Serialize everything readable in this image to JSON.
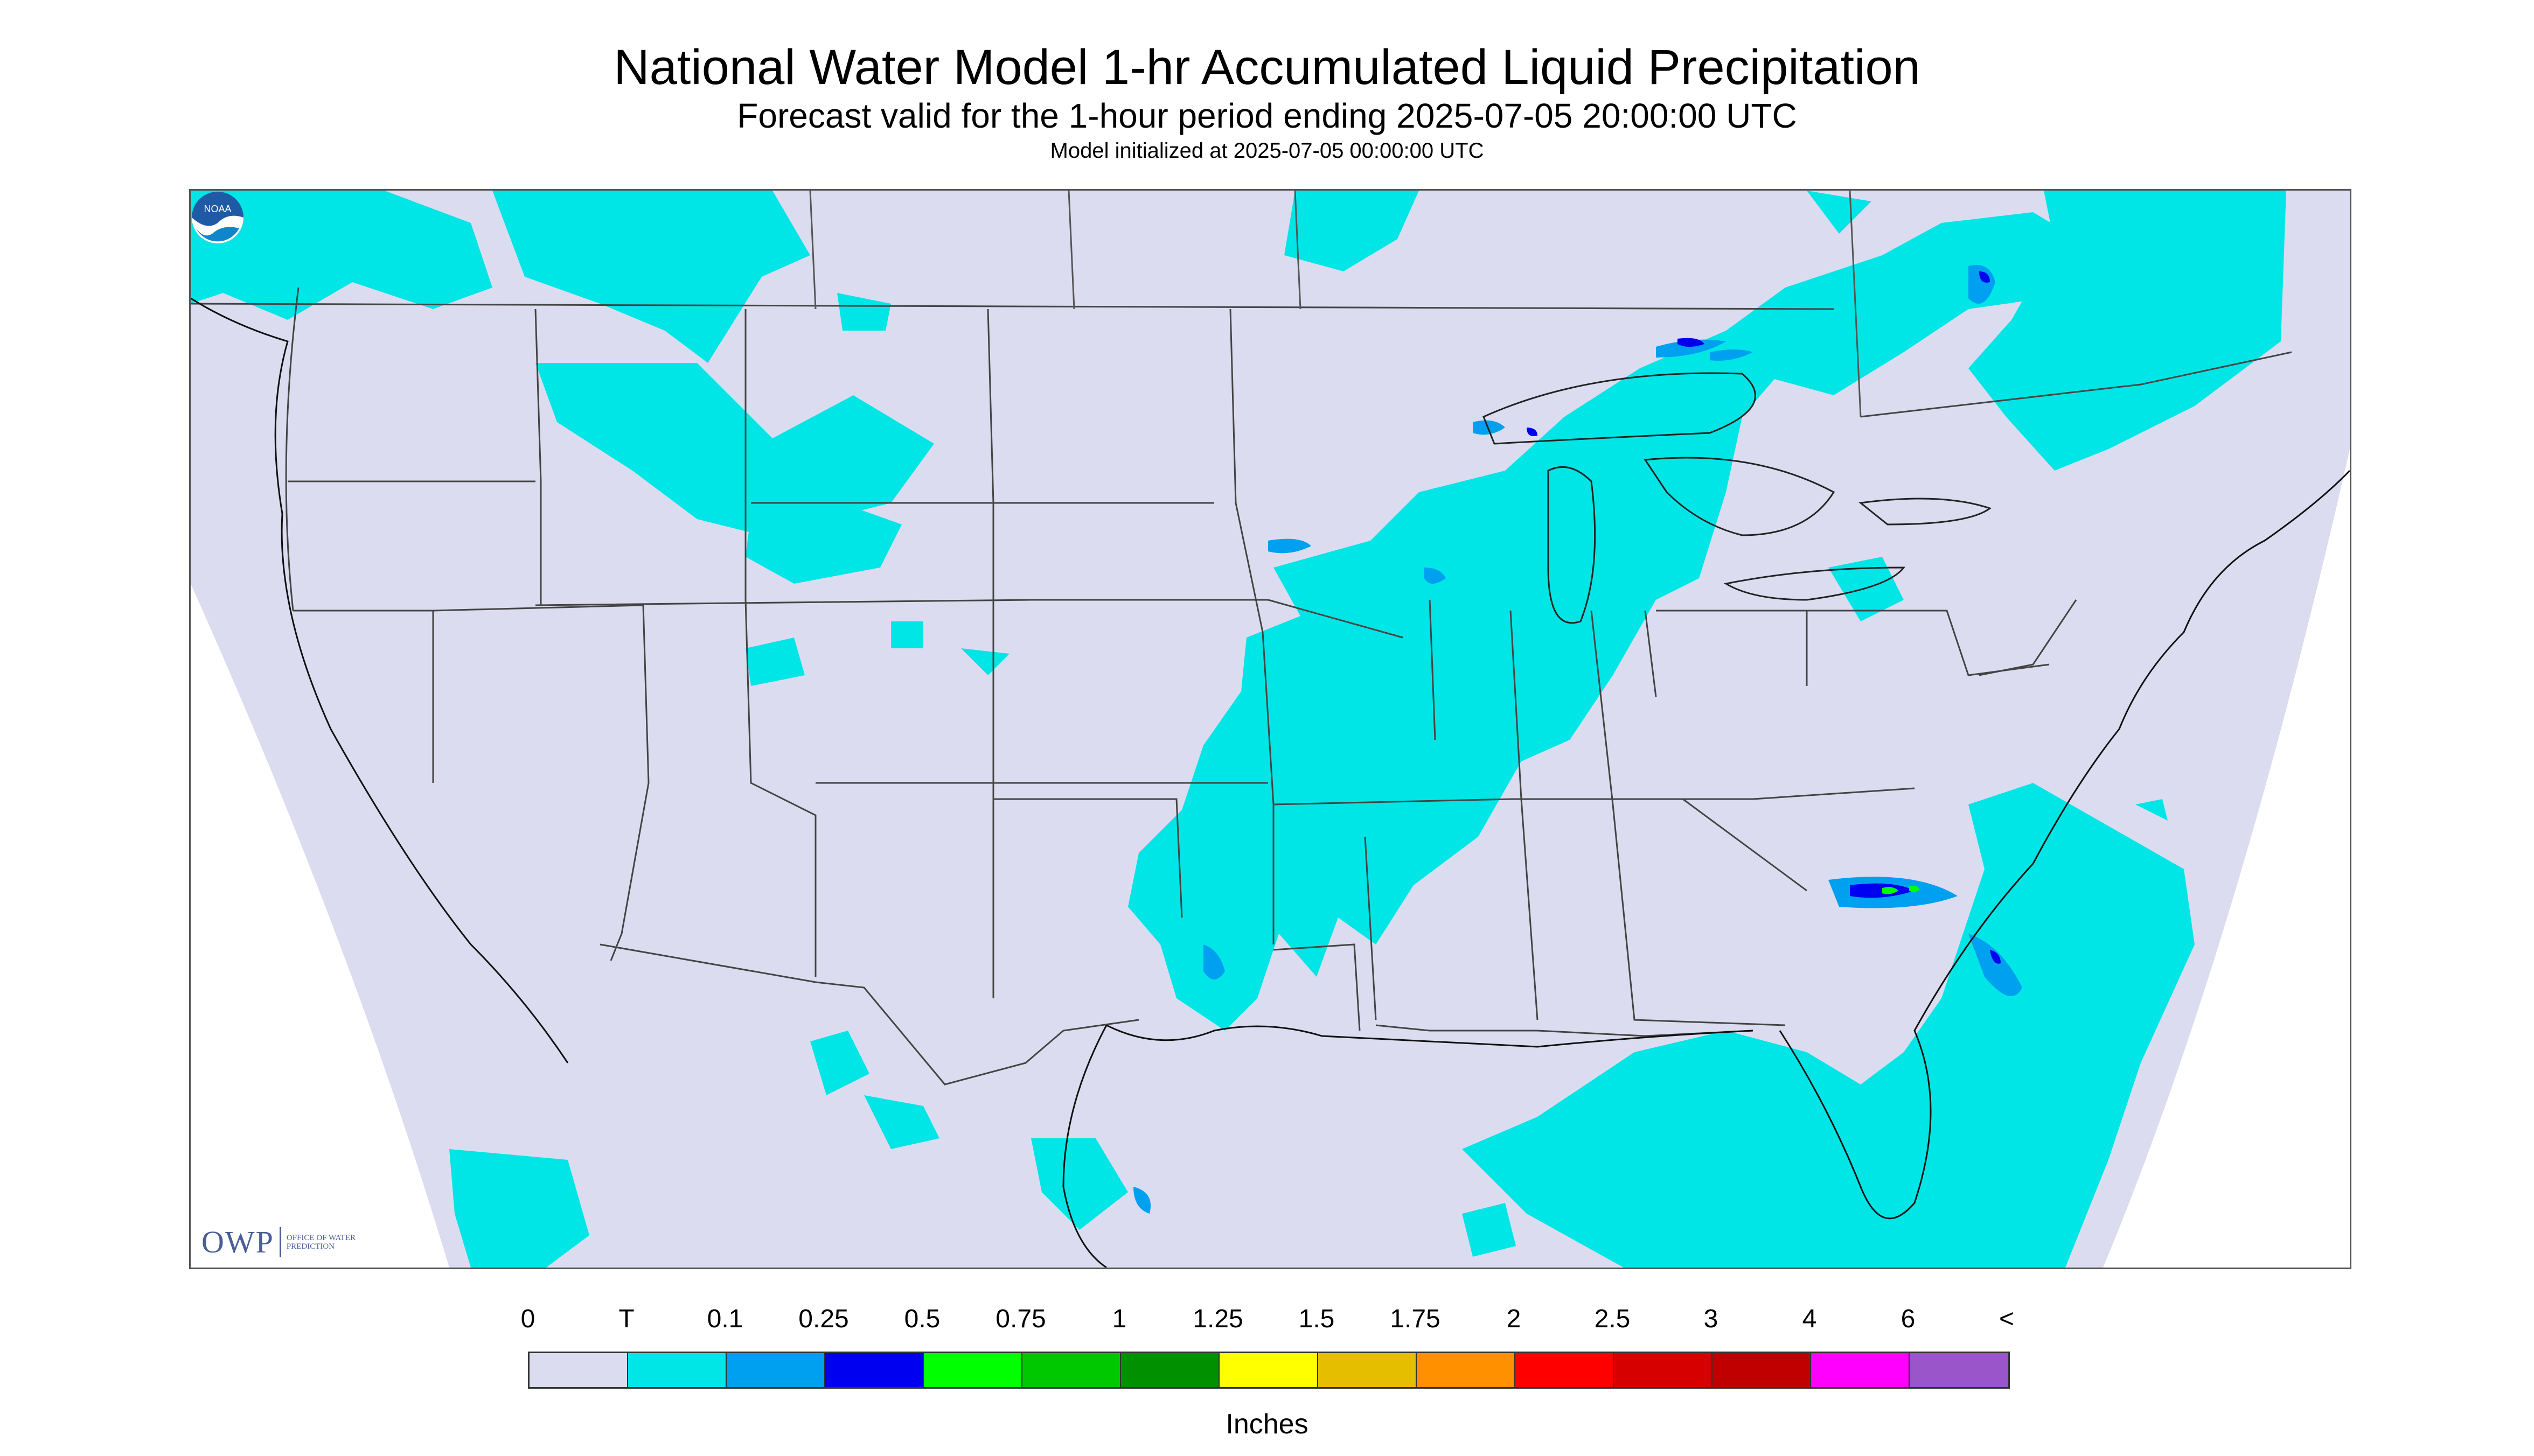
{
  "header": {
    "title": "National Water Model 1-hr Accumulated Liquid Precipitation",
    "subtitle": "Forecast valid for the 1-hour period ending 2025-07-05 20:00:00 UTC",
    "init": "Model initialized at 2025-07-05 00:00:00 UTC"
  },
  "logos": {
    "owp_text": "OWP",
    "owp_sub": "OFFICE OF WATER PREDICTION",
    "noaa_text": "NOAA"
  },
  "legend": {
    "labels": [
      "0",
      "T",
      "0.1",
      "0.25",
      "0.5",
      "0.75",
      "1",
      "1.25",
      "1.5",
      "1.75",
      "2",
      "2.5",
      "3",
      "4",
      "6",
      "<"
    ],
    "colors": [
      "#dcdcf0",
      "#00e6e6",
      "#00a0f0",
      "#0000f0",
      "#00ff00",
      "#00c800",
      "#009000",
      "#ffff00",
      "#e6be00",
      "#ff9000",
      "#ff0000",
      "#d70000",
      "#c00000",
      "#ff00ff",
      "#9955c9"
    ],
    "units": "Inches"
  },
  "map_colors": {
    "background": "#dcdcf0",
    "trace": "#00e6e6",
    "light": "#00a0f0",
    "moderate": "#0000f0",
    "heavy": "#00ff00",
    "boundary": "#444444"
  }
}
